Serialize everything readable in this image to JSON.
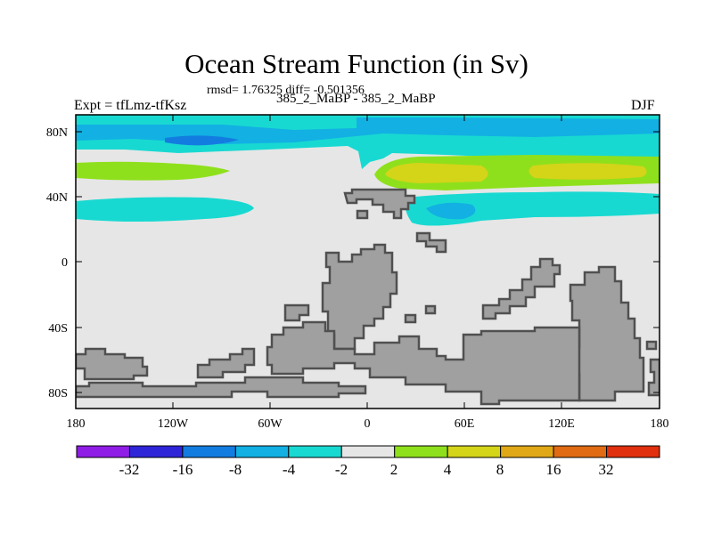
{
  "title": "Ocean Stream Function (in Sv)",
  "stats": "rmsd= 1.76325 diff= -0.501356",
  "experiment_label": "Expt = tfLmz-tfKsz",
  "comparison_label": "385_2_MaBP - 385_2_MaBP",
  "season_label": "DJF",
  "map": {
    "lon_ticks": [
      "180",
      "120W",
      "60W",
      "0",
      "60E",
      "120E",
      "180"
    ],
    "lat_ticks": [
      "80N",
      "40N",
      "0",
      "40S",
      "80S"
    ],
    "land_color": "#a0a0a0",
    "background_color": "#e6e6e6"
  },
  "colorbar": {
    "colors": [
      "#8f1de6",
      "#2e25d9",
      "#137ce0",
      "#12b0e3",
      "#18d9d1",
      "#e6e6e6",
      "#8fe01c",
      "#d4d419",
      "#e0a817",
      "#e06b12",
      "#e0300d"
    ],
    "labels": [
      "-32",
      "-16",
      "-8",
      "-4",
      "-2",
      "2",
      "4",
      "8",
      "16",
      "32"
    ]
  },
  "chart_data": {
    "type": "heatmap",
    "title": "Ocean Stream Function (in Sv)",
    "xlim": [
      -180,
      180
    ],
    "ylim": [
      -90,
      90
    ],
    "levels": [
      -32,
      -16,
      -8,
      -4,
      -2,
      2,
      4,
      8,
      16,
      32
    ],
    "units": "Sv",
    "x_ticks": [
      "180",
      "120W",
      "60W",
      "0",
      "60E",
      "120E",
      "180"
    ],
    "y_ticks": [
      "80N",
      "40N",
      "0",
      "40S",
      "80S"
    ],
    "rmsd": 1.76325,
    "diff": -0.501356
  }
}
